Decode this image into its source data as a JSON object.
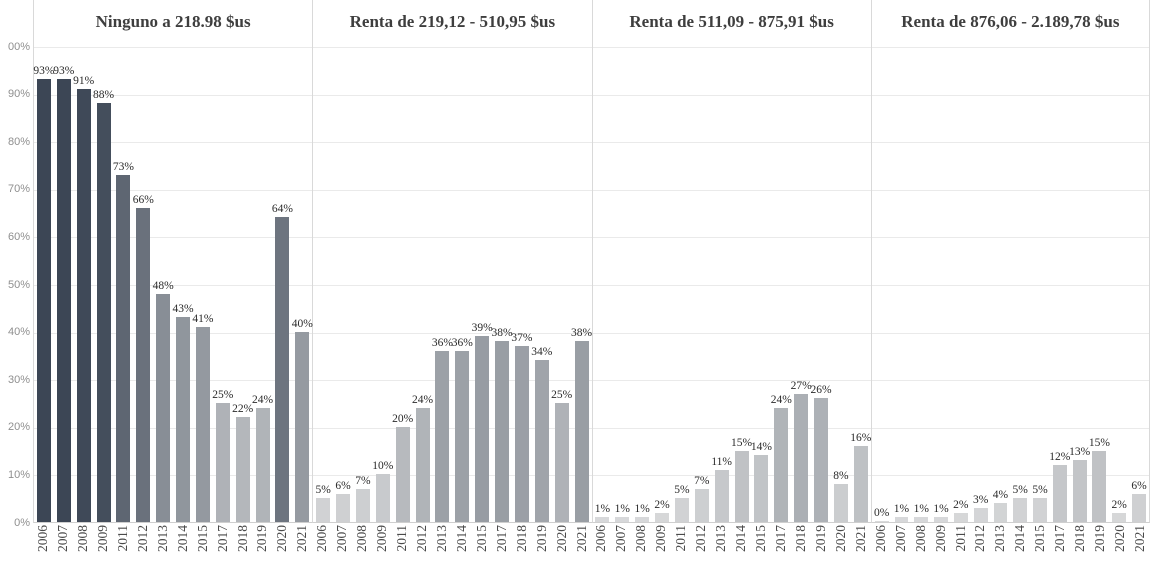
{
  "chart_data": {
    "type": "bar",
    "title": "",
    "xlabel": "",
    "ylabel": "",
    "ylim": [
      0,
      100
    ],
    "grid": true,
    "legend": "none",
    "value_label_suffix": "%",
    "y_ticks": [
      "00%",
      "90%",
      "80%",
      "70%",
      "60%",
      "50%",
      "40%",
      "30%",
      "20%",
      "10%",
      "0%"
    ],
    "categories": [
      "2006",
      "2007",
      "2008",
      "2009",
      "2011",
      "2012",
      "2013",
      "2014",
      "2015",
      "2017",
      "2018",
      "2019",
      "2020",
      "2021"
    ],
    "panels": [
      {
        "title": "Ninguno a 218.98 $us",
        "values": [
          93,
          93,
          91,
          88,
          73,
          66,
          48,
          43,
          41,
          25,
          22,
          24,
          64,
          40
        ]
      },
      {
        "title": "Renta de 219,12 - 510,95 $us",
        "values": [
          5,
          6,
          7,
          10,
          20,
          24,
          36,
          36,
          39,
          38,
          37,
          34,
          25,
          38
        ]
      },
      {
        "title": "Renta de 511,09 - 875,91 $us",
        "values": [
          1,
          1,
          1,
          2,
          5,
          7,
          11,
          15,
          14,
          24,
          27,
          26,
          8,
          16
        ]
      },
      {
        "title": "Renta de 876,06 - 2.189,78 $us",
        "values": [
          0,
          1,
          1,
          1,
          2,
          3,
          4,
          5,
          5,
          12,
          13,
          15,
          2,
          6
        ]
      }
    ],
    "colors": {
      "bar_low": "#d9dadb",
      "bar_high": "#3c4655",
      "gridline": "#eaeaea",
      "separator": "#d9d9d9",
      "baseline": "#cfcfcf",
      "panel_title": "#3e3e3e",
      "value_label": "#2b2b2b",
      "year_label": "#4a4a4a",
      "y_tick_label": "#8f8f8f"
    }
  }
}
